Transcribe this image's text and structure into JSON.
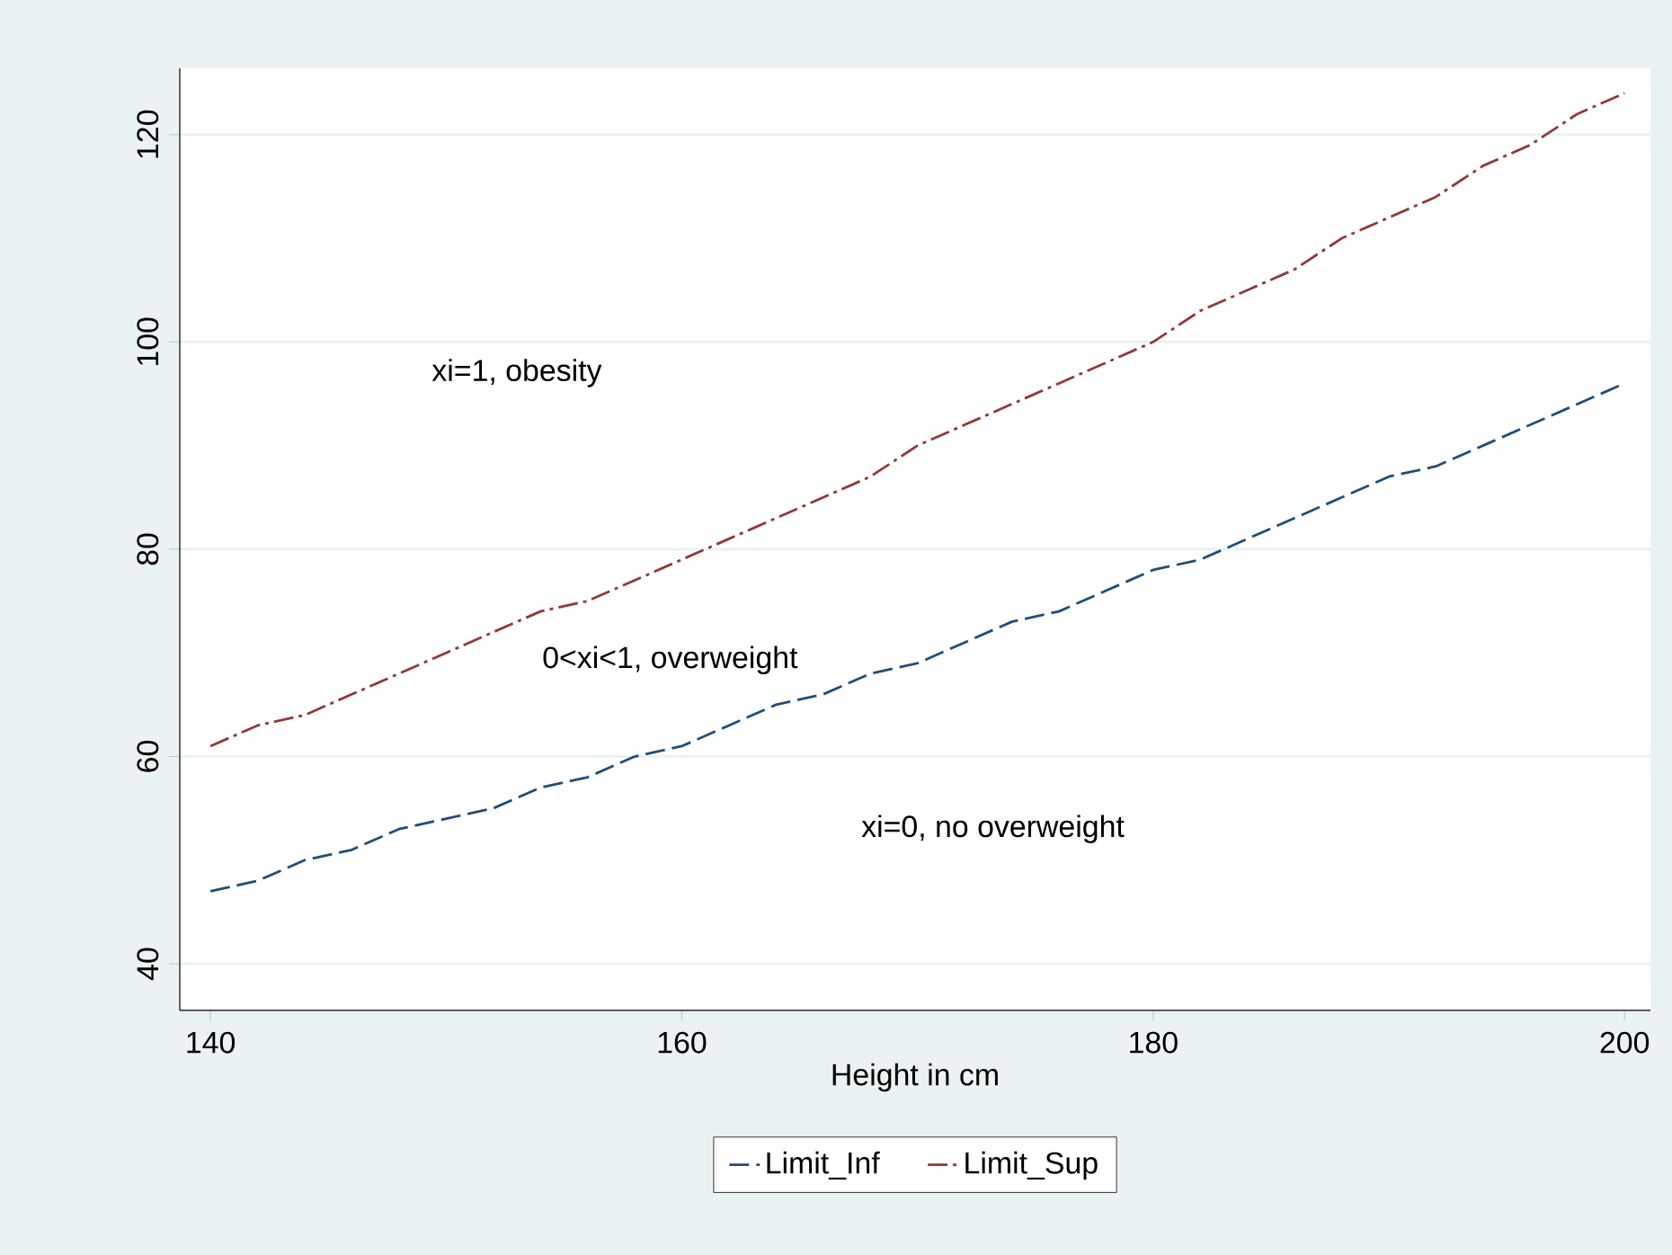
{
  "chart_data": {
    "type": "line",
    "xlabel": "Height in cm",
    "x": [
      140,
      142,
      144,
      146,
      148,
      150,
      152,
      154,
      156,
      158,
      160,
      162,
      164,
      166,
      168,
      170,
      172,
      174,
      176,
      178,
      180,
      182,
      184,
      186,
      188,
      190,
      192,
      194,
      196,
      198,
      200
    ],
    "series": [
      {
        "name": "Limit_Inf",
        "color": "#1f4e79",
        "line_style": "dashed",
        "values": [
          47,
          48,
          50,
          51,
          53,
          54,
          55,
          57,
          58,
          60,
          61,
          63,
          65,
          66,
          68,
          69,
          71,
          73,
          74,
          76,
          78,
          79,
          81,
          83,
          85,
          87,
          88,
          90,
          92,
          94,
          96
        ]
      },
      {
        "name": "Limit_Sup",
        "color": "#943838",
        "line_style": "dashdot",
        "values": [
          61,
          63,
          64,
          66,
          68,
          70,
          72,
          74,
          75,
          77,
          79,
          81,
          83,
          85,
          87,
          90,
          92,
          94,
          96,
          98,
          100,
          103,
          105,
          107,
          110,
          112,
          114,
          117,
          119,
          122,
          124
        ]
      }
    ],
    "xlim": [
      138.7,
      201.1
    ],
    "ylim": [
      35.5,
      126.4
    ],
    "xticks": [
      140,
      160,
      180,
      200
    ],
    "yticks": [
      40,
      60,
      80,
      100,
      120
    ],
    "grid": "y",
    "legend": "bottom",
    "marker": "none",
    "annotations": [
      "xi=1, obesity",
      "0<xi<1, overweight",
      "xi=0, no overweight"
    ]
  }
}
